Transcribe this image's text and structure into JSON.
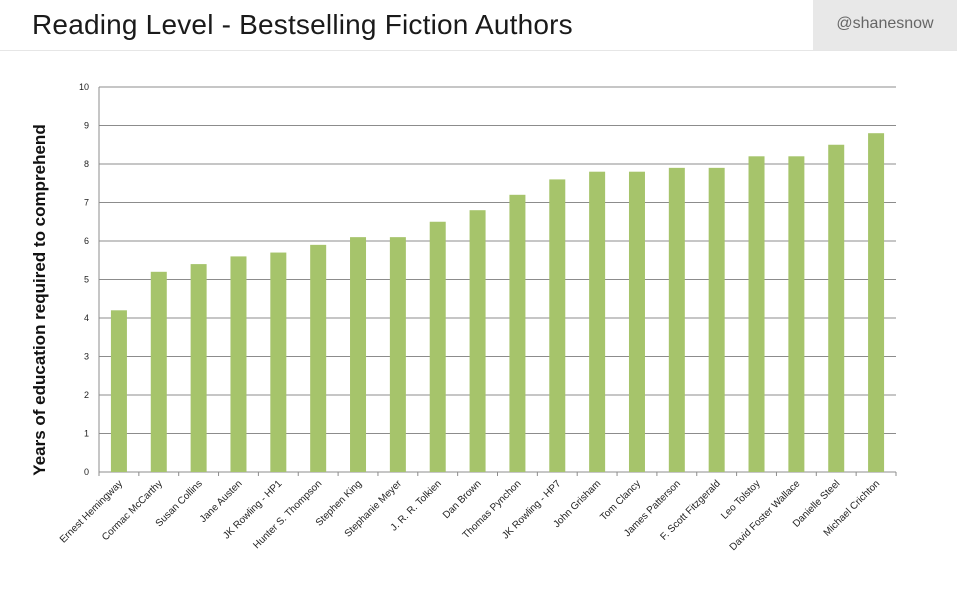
{
  "header": {
    "title": "Reading Level - Bestselling Fiction Authors",
    "handle": "@shanesnow"
  },
  "chart_data": {
    "type": "bar",
    "title": "Reading Level - Bestselling Fiction Authors",
    "ylabel": "Years of education required to comprehend",
    "xlabel": "",
    "ylim": [
      0,
      10
    ],
    "yticks": [
      0,
      1,
      2,
      3,
      4,
      5,
      6,
      7,
      8,
      9,
      10
    ],
    "grid": true,
    "bar_color": "#a6c46b",
    "categories": [
      "Ernest Hemingway",
      "Cormac McCarthy",
      "Susan Collins",
      "Jane Austen",
      "JK Rowling - HP1",
      "Hunter S. Thompson",
      "Stephen King",
      "Stephanie Meyer",
      "J. R. R. Tolkien",
      "Dan Brown",
      "Thomas Pynchon",
      "JK Rowling - HP7",
      "John Grisham",
      "Tom Clancy",
      "James Patterson",
      "F. Scott Fitzgerald",
      "Leo Tolstoy",
      "David Foster Wallace",
      "Danielle Steel",
      "Michael Crichton"
    ],
    "values": [
      4.2,
      5.2,
      5.4,
      5.6,
      5.7,
      5.9,
      6.1,
      6.1,
      6.5,
      6.8,
      7.2,
      7.6,
      7.8,
      7.8,
      7.9,
      7.9,
      8.2,
      8.2,
      8.5,
      8.8
    ]
  }
}
